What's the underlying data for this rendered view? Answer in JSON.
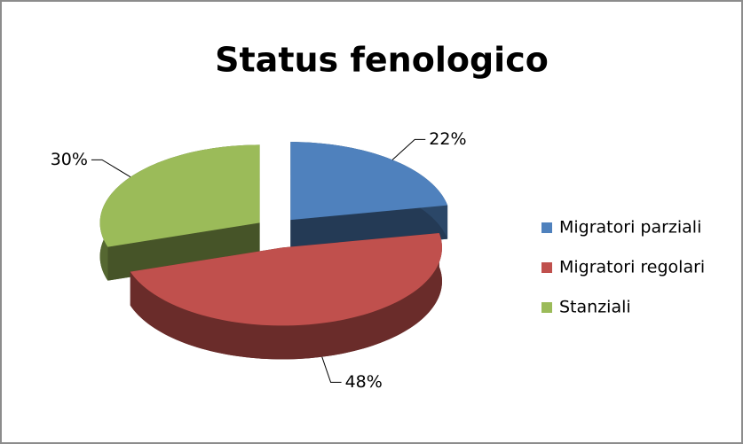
{
  "chart_data": {
    "type": "pie",
    "title": "Status fenologico",
    "categories": [
      "Migratori parziali",
      "Migratori regolari",
      "Stanziali"
    ],
    "values": [
      22,
      48,
      30
    ],
    "value_labels": [
      "22%",
      "48%",
      "30%"
    ],
    "colors": [
      "#4f81bd",
      "#c0504d",
      "#9bbb59"
    ],
    "legend": "right"
  }
}
